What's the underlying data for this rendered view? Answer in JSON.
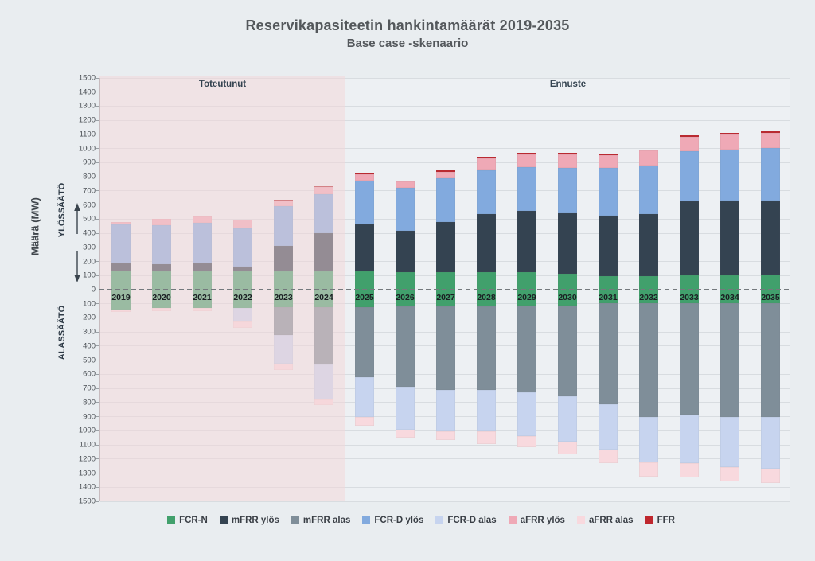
{
  "chart_data": {
    "type": "bar",
    "stacked": true,
    "mirrored_axis": true,
    "title": "Reservikapasiteetin hankintamäärät 2019-2035",
    "subtitle": "Base case -skenaario",
    "ylabel": "Määrä (MW)",
    "up_axis_label": "YLÖSSÄÄTÖ",
    "down_axis_label": "ALASSÄÄTÖ",
    "ylim": [
      -1500,
      1500
    ],
    "ytick_step": 100,
    "grid": true,
    "legend_position": "bottom",
    "regions": [
      {
        "label": "Toteutunut",
        "from_year": 2019,
        "to_year": 2024,
        "overlay_color": "rgba(243,214,215,0.5)"
      },
      {
        "label": "Ennuste",
        "from_year": 2025,
        "to_year": 2035
      }
    ],
    "categories": [
      2019,
      2020,
      2021,
      2022,
      2023,
      2024,
      2025,
      2026,
      2027,
      2028,
      2029,
      2030,
      2031,
      2032,
      2033,
      2034,
      2035
    ],
    "series_up": [
      {
        "name": "FCR-N",
        "color": "#41a06c",
        "values": [
          135,
          130,
          130,
          130,
          130,
          130,
          130,
          125,
          125,
          125,
          125,
          115,
          95,
          95,
          100,
          100,
          105
        ]
      },
      {
        "name": "mFRR ylös",
        "color": "#344351",
        "values": [
          50,
          50,
          55,
          35,
          180,
          270,
          330,
          295,
          355,
          410,
          435,
          425,
          430,
          440,
          525,
          530,
          525
        ]
      },
      {
        "name": "FCR-D ylös",
        "color": "#82aade",
        "values": [
          275,
          275,
          290,
          270,
          280,
          275,
          310,
          300,
          310,
          310,
          310,
          325,
          335,
          345,
          355,
          365,
          375
        ]
      },
      {
        "name": "aFRR ylös",
        "color": "#efa9b6",
        "values": [
          20,
          45,
          45,
          60,
          40,
          50,
          50,
          45,
          45,
          85,
          90,
          95,
          95,
          105,
          105,
          105,
          105
        ]
      },
      {
        "name": "FFR",
        "color": "#bf272e",
        "values": [
          0,
          0,
          0,
          0,
          10,
          10,
          10,
          10,
          10,
          10,
          10,
          10,
          10,
          10,
          10,
          10,
          10
        ]
      }
    ],
    "series_down": [
      {
        "name": "FCR-N",
        "color": "#41a06c",
        "values": [
          140,
          130,
          130,
          130,
          125,
          125,
          125,
          120,
          120,
          120,
          115,
          115,
          95,
          95,
          95,
          95,
          95
        ]
      },
      {
        "name": "mFRR alas",
        "color": "#7f8e99",
        "values": [
          0,
          0,
          0,
          0,
          195,
          405,
          495,
          570,
          590,
          590,
          615,
          640,
          715,
          805,
          790,
          805,
          810
        ]
      },
      {
        "name": "FCR-D alas",
        "color": "#c7d4ef",
        "values": [
          0,
          0,
          0,
          95,
          205,
          250,
          285,
          305,
          295,
          295,
          305,
          320,
          325,
          325,
          345,
          360,
          365
        ]
      },
      {
        "name": "aFRR alas",
        "color": "#f8d9de",
        "values": [
          20,
          25,
          25,
          45,
          45,
          40,
          60,
          55,
          60,
          90,
          80,
          90,
          95,
          100,
          100,
          100,
          100
        ]
      }
    ],
    "legend": [
      {
        "name": "FCR-N",
        "color": "#41a06c"
      },
      {
        "name": "mFRR ylös",
        "color": "#344351"
      },
      {
        "name": "mFRR alas",
        "color": "#7f8e99"
      },
      {
        "name": "FCR-D ylös",
        "color": "#82aade"
      },
      {
        "name": "FCR-D alas",
        "color": "#c7d4ef"
      },
      {
        "name": "aFRR ylös",
        "color": "#efa9b6"
      },
      {
        "name": "aFRR alas",
        "color": "#f8d9de"
      },
      {
        "name": "FFR",
        "color": "#bf272e"
      }
    ]
  }
}
